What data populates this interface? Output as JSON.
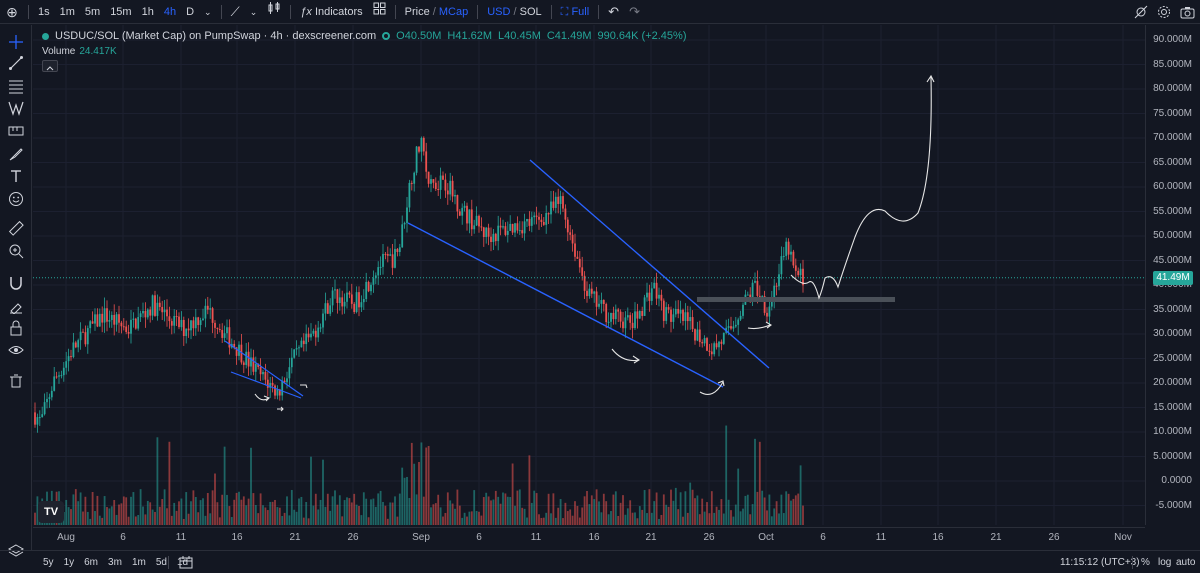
{
  "toolbar": {
    "timeframes": [
      "1s",
      "1m",
      "5m",
      "15m",
      "1h",
      "4h",
      "D"
    ],
    "active_timeframe": "4h",
    "indicators_label": "Indicators",
    "price_label": "Price",
    "mcap_label": "MCap",
    "usd_label": "USD",
    "sol_label": "SOL",
    "full_label": "Full",
    "slash": "/"
  },
  "legend": {
    "title": "USDUC/SOL (Market Cap) on PumpSwap · 4h · dexscreener.com",
    "open": "O40.50M",
    "high": "H41.62M",
    "low": "L40.45M",
    "close": "C41.49M",
    "change": "990.64K (+2.45%)",
    "volume_label": "Volume",
    "volume_value": "24.417K"
  },
  "price_axis": {
    "ticks": [
      "90.000M",
      "85.000M",
      "80.000M",
      "75.000M",
      "70.000M",
      "65.000M",
      "60.000M",
      "55.000M",
      "50.000M",
      "45.000M",
      "40.000M",
      "35.000M",
      "30.000M",
      "25.000M",
      "20.000M",
      "15.000M",
      "10.000M",
      "5.0000M",
      "0.0000",
      "-5.000M"
    ],
    "current_price": "41.49M"
  },
  "time_axis": {
    "ticks": [
      "Aug",
      "6",
      "11",
      "16",
      "21",
      "26",
      "Sep",
      "6",
      "11",
      "16",
      "21",
      "26",
      "Oct",
      "6",
      "11",
      "16",
      "21",
      "26",
      "Nov"
    ]
  },
  "bottom": {
    "ranges": [
      "5y",
      "1y",
      "6m",
      "3m",
      "1m",
      "5d",
      "1d"
    ],
    "clock": "11:15:12 (UTC+3)",
    "percent": "%",
    "log": "log",
    "auto": "auto"
  },
  "logo_text": "TV",
  "colors": {
    "up": "#26a69a",
    "down": "#ef5350",
    "accent": "#2962ff",
    "background": "#131722"
  }
}
